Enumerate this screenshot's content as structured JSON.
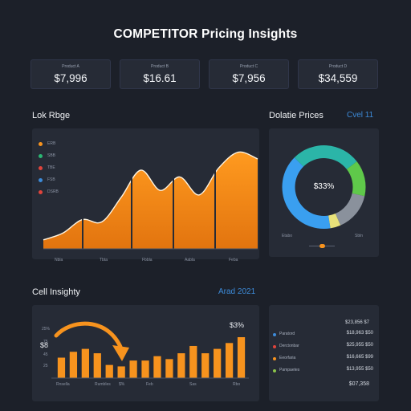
{
  "title": "COMPETITOR Pricing Insights",
  "stats": [
    {
      "label": "Product A",
      "value": "$7,996"
    },
    {
      "label": "Product B",
      "value": "$16.61"
    },
    {
      "label": "Product C",
      "value": "$7,956"
    },
    {
      "label": "Product D",
      "value": "$34,559"
    }
  ],
  "left_panel": {
    "title": "Lok Rbge",
    "legend": [
      {
        "label": "ERB",
        "color": "#f7931e"
      },
      {
        "label": "SBB",
        "color": "#2bb673"
      },
      {
        "label": "TBE",
        "color": "#e0443c"
      },
      {
        "label": "FSB",
        "color": "#3d8bd9"
      },
      {
        "label": "DSRB",
        "color": "#e0443c"
      }
    ],
    "x_ticks": [
      "Nbla",
      "Tbta",
      "Fbbla",
      "Aabla",
      "Feba"
    ]
  },
  "right_panel": {
    "title": "Dolatie Prices",
    "tag": "Cvel 11",
    "center_value": "$33%",
    "left_note": "Etabo",
    "right_note": "Sbln"
  },
  "bottom_section": {
    "title": "Cell Insighty",
    "tag": "Arad 2021"
  },
  "bottom_left": {
    "percent_label": "$3%",
    "y_label": "$8",
    "y_ticks": [
      "25%",
      "75",
      "45",
      "25"
    ],
    "x_ticks": [
      "Rnsella",
      "Rumbles",
      "$%",
      "Feb",
      "Sas",
      "Rbo"
    ]
  },
  "bottom_right": {
    "header": "$23,856 $7",
    "rows": [
      {
        "name": "Paratord",
        "price": "$18,963 $50",
        "color": "#3d8bd9"
      },
      {
        "name": "Derctonbar",
        "price": "$25,955 $50",
        "color": "#e0443c"
      },
      {
        "name": "Eeorfaria",
        "price": "$16,665 $99",
        "color": "#f7931e"
      },
      {
        "name": "Pampaetes",
        "price": "$13,955 $50",
        "color": "#8bc34a"
      }
    ],
    "footer": "$07,358"
  },
  "colors": {
    "accent_orange": "#f7931e",
    "accent_blue": "#3d8bd9",
    "accent_green": "#5fc94a",
    "accent_teal": "#2bb5a8",
    "panel": "#262b36",
    "background": "#1c2029"
  },
  "chart_data": [
    {
      "type": "area",
      "x": [
        0,
        1,
        2,
        3,
        4,
        5,
        6,
        7,
        8,
        9,
        10,
        11
      ],
      "series": [
        {
          "values": [
            8,
            14,
            26,
            24,
            46,
            70,
            52,
            64,
            48,
            72,
            86,
            80
          ]
        }
      ],
      "ylim": [
        0,
        100
      ]
    },
    {
      "type": "pie",
      "labels": [
        "blue",
        "teal",
        "green",
        "gray",
        "yellow"
      ],
      "values": [
        40,
        27,
        14,
        15,
        4
      ],
      "center_label": "$33%"
    },
    {
      "type": "bar",
      "values": [
        28,
        36,
        40,
        34,
        18,
        16,
        24,
        24,
        30,
        26,
        34,
        44,
        34,
        40,
        48,
        56
      ],
      "ylim": [
        0,
        100
      ]
    }
  ]
}
